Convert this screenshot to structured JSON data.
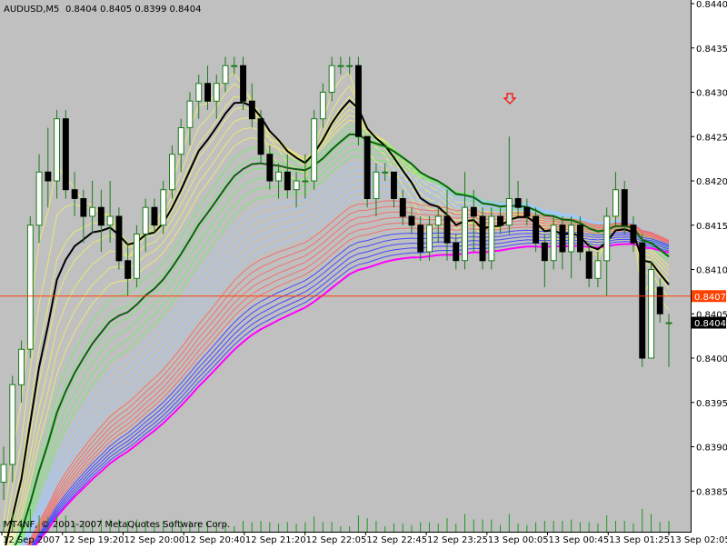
{
  "header": {
    "symbol": "AUDUSD,M5",
    "ohlc": "0.8404 0.8405 0.8399 0.8404"
  },
  "copyright": "MT4NF, © 2001-2007 MetaQuotes Software Corp.",
  "price_labels": {
    "hline": "0.8407",
    "last": "0.8404"
  },
  "colors": {
    "background": "#c0c0c0",
    "bull_body": "#ffffff",
    "bear_body": "#000000",
    "wick": "#1a7a1a",
    "hline": "#ff4000",
    "last_label_bg": "#000000",
    "fan": [
      "#e8e878",
      "#78e878",
      "#a0c8ff",
      "#f07070",
      "#4848ff",
      "#ff00ff"
    ],
    "arrow": "#ff0000"
  },
  "chart_data": {
    "type": "candlestick",
    "symbol": "AUDUSD",
    "timeframe": "M5",
    "ylim": [
      0.838,
      0.844
    ],
    "y_ticks": [
      0.8385,
      0.839,
      0.8395,
      0.84,
      0.8405,
      0.841,
      0.8415,
      0.842,
      0.8425,
      0.843,
      0.8435,
      0.844
    ],
    "x_ticks": [
      "12 Sep 2007",
      "12 Sep 19:20",
      "12 Sep 20:00",
      "12 Sep 20:40",
      "12 Sep 21:20",
      "12 Sep 22:05",
      "12 Sep 22:45",
      "12 Sep 23:25",
      "13 Sep 00:05",
      "13 Sep 00:45",
      "13 Sep 01:25",
      "13 Sep 02:05"
    ],
    "horizontal_line": 0.8407,
    "last_price": 0.8404,
    "candles": [
      {
        "o": 0.8386,
        "h": 0.839,
        "l": 0.8384,
        "c": 0.8388
      },
      {
        "o": 0.8388,
        "h": 0.8398,
        "l": 0.8386,
        "c": 0.8397
      },
      {
        "o": 0.8397,
        "h": 0.8402,
        "l": 0.8395,
        "c": 0.8401
      },
      {
        "o": 0.8401,
        "h": 0.8416,
        "l": 0.84,
        "c": 0.8415
      },
      {
        "o": 0.8415,
        "h": 0.8423,
        "l": 0.8413,
        "c": 0.8421
      },
      {
        "o": 0.8421,
        "h": 0.8426,
        "l": 0.8417,
        "c": 0.842
      },
      {
        "o": 0.842,
        "h": 0.8428,
        "l": 0.8418,
        "c": 0.8427
      },
      {
        "o": 0.8427,
        "h": 0.8428,
        "l": 0.8418,
        "c": 0.8419
      },
      {
        "o": 0.8419,
        "h": 0.8421,
        "l": 0.8416,
        "c": 0.8418
      },
      {
        "o": 0.8418,
        "h": 0.8419,
        "l": 0.8413,
        "c": 0.8416
      },
      {
        "o": 0.8416,
        "h": 0.842,
        "l": 0.8414,
        "c": 0.8417
      },
      {
        "o": 0.8417,
        "h": 0.8419,
        "l": 0.8412,
        "c": 0.8415
      },
      {
        "o": 0.8415,
        "h": 0.842,
        "l": 0.8413,
        "c": 0.8416
      },
      {
        "o": 0.8416,
        "h": 0.8417,
        "l": 0.841,
        "c": 0.8411
      },
      {
        "o": 0.8411,
        "h": 0.8413,
        "l": 0.8407,
        "c": 0.8409
      },
      {
        "o": 0.8409,
        "h": 0.8415,
        "l": 0.8408,
        "c": 0.8414
      },
      {
        "o": 0.8414,
        "h": 0.8418,
        "l": 0.8412,
        "c": 0.8417
      },
      {
        "o": 0.8417,
        "h": 0.8418,
        "l": 0.8414,
        "c": 0.8415
      },
      {
        "o": 0.8415,
        "h": 0.842,
        "l": 0.8414,
        "c": 0.8419
      },
      {
        "o": 0.8419,
        "h": 0.8424,
        "l": 0.8418,
        "c": 0.8423
      },
      {
        "o": 0.8423,
        "h": 0.8427,
        "l": 0.8421,
        "c": 0.8426
      },
      {
        "o": 0.8426,
        "h": 0.843,
        "l": 0.8424,
        "c": 0.8429
      },
      {
        "o": 0.8429,
        "h": 0.8432,
        "l": 0.8427,
        "c": 0.8431
      },
      {
        "o": 0.8431,
        "h": 0.8433,
        "l": 0.8428,
        "c": 0.8429
      },
      {
        "o": 0.8429,
        "h": 0.8432,
        "l": 0.8427,
        "c": 0.8431
      },
      {
        "o": 0.8431,
        "h": 0.8434,
        "l": 0.843,
        "c": 0.8433
      },
      {
        "o": 0.8433,
        "h": 0.8434,
        "l": 0.8432,
        "c": 0.8433
      },
      {
        "o": 0.8433,
        "h": 0.8434,
        "l": 0.8428,
        "c": 0.8429
      },
      {
        "o": 0.8429,
        "h": 0.8431,
        "l": 0.8426,
        "c": 0.8427
      },
      {
        "o": 0.8427,
        "h": 0.8428,
        "l": 0.8422,
        "c": 0.8423
      },
      {
        "o": 0.8423,
        "h": 0.8424,
        "l": 0.8419,
        "c": 0.842
      },
      {
        "o": 0.842,
        "h": 0.8422,
        "l": 0.8418,
        "c": 0.8421
      },
      {
        "o": 0.8421,
        "h": 0.8423,
        "l": 0.8418,
        "c": 0.8419
      },
      {
        "o": 0.8419,
        "h": 0.8421,
        "l": 0.8417,
        "c": 0.842
      },
      {
        "o": 0.842,
        "h": 0.8423,
        "l": 0.8418,
        "c": 0.842
      },
      {
        "o": 0.842,
        "h": 0.8428,
        "l": 0.8419,
        "c": 0.8427
      },
      {
        "o": 0.8427,
        "h": 0.8431,
        "l": 0.8426,
        "c": 0.843
      },
      {
        "o": 0.843,
        "h": 0.8434,
        "l": 0.8429,
        "c": 0.8433
      },
      {
        "o": 0.8433,
        "h": 0.8434,
        "l": 0.8432,
        "c": 0.8433
      },
      {
        "o": 0.8433,
        "h": 0.8434,
        "l": 0.8432,
        "c": 0.8433
      },
      {
        "o": 0.8433,
        "h": 0.8434,
        "l": 0.8424,
        "c": 0.8425
      },
      {
        "o": 0.8425,
        "h": 0.8425,
        "l": 0.8417,
        "c": 0.8418
      },
      {
        "o": 0.8418,
        "h": 0.8422,
        "l": 0.8416,
        "c": 0.8421
      },
      {
        "o": 0.8421,
        "h": 0.8422,
        "l": 0.842,
        "c": 0.8421
      },
      {
        "o": 0.8421,
        "h": 0.8421,
        "l": 0.8417,
        "c": 0.8418
      },
      {
        "o": 0.8418,
        "h": 0.8419,
        "l": 0.8415,
        "c": 0.8416
      },
      {
        "o": 0.8416,
        "h": 0.8417,
        "l": 0.8414,
        "c": 0.8415
      },
      {
        "o": 0.8415,
        "h": 0.8416,
        "l": 0.8411,
        "c": 0.8412
      },
      {
        "o": 0.8412,
        "h": 0.8416,
        "l": 0.8411,
        "c": 0.8415
      },
      {
        "o": 0.8415,
        "h": 0.8417,
        "l": 0.8413,
        "c": 0.8416
      },
      {
        "o": 0.8416,
        "h": 0.8419,
        "l": 0.8411,
        "c": 0.8413
      },
      {
        "o": 0.8413,
        "h": 0.8414,
        "l": 0.841,
        "c": 0.8411
      },
      {
        "o": 0.8411,
        "h": 0.8421,
        "l": 0.841,
        "c": 0.8417
      },
      {
        "o": 0.8417,
        "h": 0.8419,
        "l": 0.8412,
        "c": 0.8416
      },
      {
        "o": 0.8416,
        "h": 0.8417,
        "l": 0.841,
        "c": 0.8411
      },
      {
        "o": 0.8411,
        "h": 0.8417,
        "l": 0.841,
        "c": 0.8416
      },
      {
        "o": 0.8416,
        "h": 0.8417,
        "l": 0.8414,
        "c": 0.8415
      },
      {
        "o": 0.8415,
        "h": 0.8425,
        "l": 0.8414,
        "c": 0.8418
      },
      {
        "o": 0.8418,
        "h": 0.842,
        "l": 0.8416,
        "c": 0.8417
      },
      {
        "o": 0.8417,
        "h": 0.8418,
        "l": 0.8415,
        "c": 0.8416
      },
      {
        "o": 0.8416,
        "h": 0.8417,
        "l": 0.8412,
        "c": 0.8413
      },
      {
        "o": 0.8413,
        "h": 0.8414,
        "l": 0.8408,
        "c": 0.8411
      },
      {
        "o": 0.8411,
        "h": 0.8416,
        "l": 0.841,
        "c": 0.8415
      },
      {
        "o": 0.8415,
        "h": 0.8416,
        "l": 0.841,
        "c": 0.8412
      },
      {
        "o": 0.8412,
        "h": 0.8416,
        "l": 0.8409,
        "c": 0.8415
      },
      {
        "o": 0.8415,
        "h": 0.8416,
        "l": 0.8411,
        "c": 0.8412
      },
      {
        "o": 0.8412,
        "h": 0.8413,
        "l": 0.8408,
        "c": 0.8409
      },
      {
        "o": 0.8409,
        "h": 0.8412,
        "l": 0.8408,
        "c": 0.8411
      },
      {
        "o": 0.8411,
        "h": 0.8417,
        "l": 0.8407,
        "c": 0.8416
      },
      {
        "o": 0.8416,
        "h": 0.8421,
        "l": 0.8415,
        "c": 0.8419
      },
      {
        "o": 0.8419,
        "h": 0.842,
        "l": 0.8414,
        "c": 0.8415
      },
      {
        "o": 0.8415,
        "h": 0.8416,
        "l": 0.8412,
        "c": 0.8413
      },
      {
        "o": 0.8413,
        "h": 0.8414,
        "l": 0.8399,
        "c": 0.84
      },
      {
        "o": 0.84,
        "h": 0.8411,
        "l": 0.84,
        "c": 0.841
      },
      {
        "o": 0.8408,
        "h": 0.8409,
        "l": 0.8404,
        "c": 0.8405
      },
      {
        "o": 0.8404,
        "h": 0.8405,
        "l": 0.8399,
        "c": 0.8404
      }
    ]
  }
}
